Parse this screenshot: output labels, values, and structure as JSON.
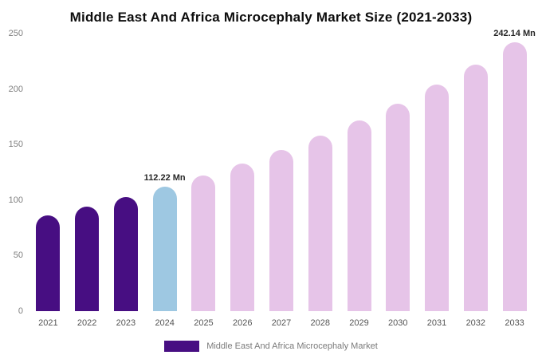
{
  "title": "Middle East And Africa Microcephaly Market Size (2021-2033)",
  "legend": {
    "label": "Middle East And Africa Microcephaly Market",
    "color": "#470e82"
  },
  "colors": {
    "historical_bar": "#470e82",
    "base_year_bar": "#9ec8e2",
    "forecast_bar": "#e6c4e8"
  },
  "chart_data": {
    "type": "bar",
    "title": "Middle East And Africa Microcephaly Market Size (2021-2033)",
    "categories": [
      "2021",
      "2022",
      "2023",
      "2024",
      "2025",
      "2026",
      "2027",
      "2028",
      "2029",
      "2030",
      "2031",
      "2032",
      "2033"
    ],
    "values": [
      86,
      94,
      103,
      112.22,
      122,
      133,
      145,
      158,
      172,
      187,
      204,
      222,
      242.14
    ],
    "bar_colors": [
      "#470e82",
      "#470e82",
      "#470e82",
      "#9ec8e2",
      "#e6c4e8",
      "#e6c4e8",
      "#e6c4e8",
      "#e6c4e8",
      "#e6c4e8",
      "#e6c4e8",
      "#e6c4e8",
      "#e6c4e8",
      "#e6c4e8"
    ],
    "annotations": [
      {
        "index": 3,
        "text": "112.22 Mn"
      },
      {
        "index": 12,
        "text": "242.14 Mn"
      }
    ],
    "unit": "Mn",
    "xlabel": "",
    "ylabel": "",
    "ylim": [
      0,
      250
    ],
    "yticks": [
      0,
      50,
      100,
      150,
      200,
      250
    ],
    "grid": false,
    "legend_position": "bottom"
  }
}
